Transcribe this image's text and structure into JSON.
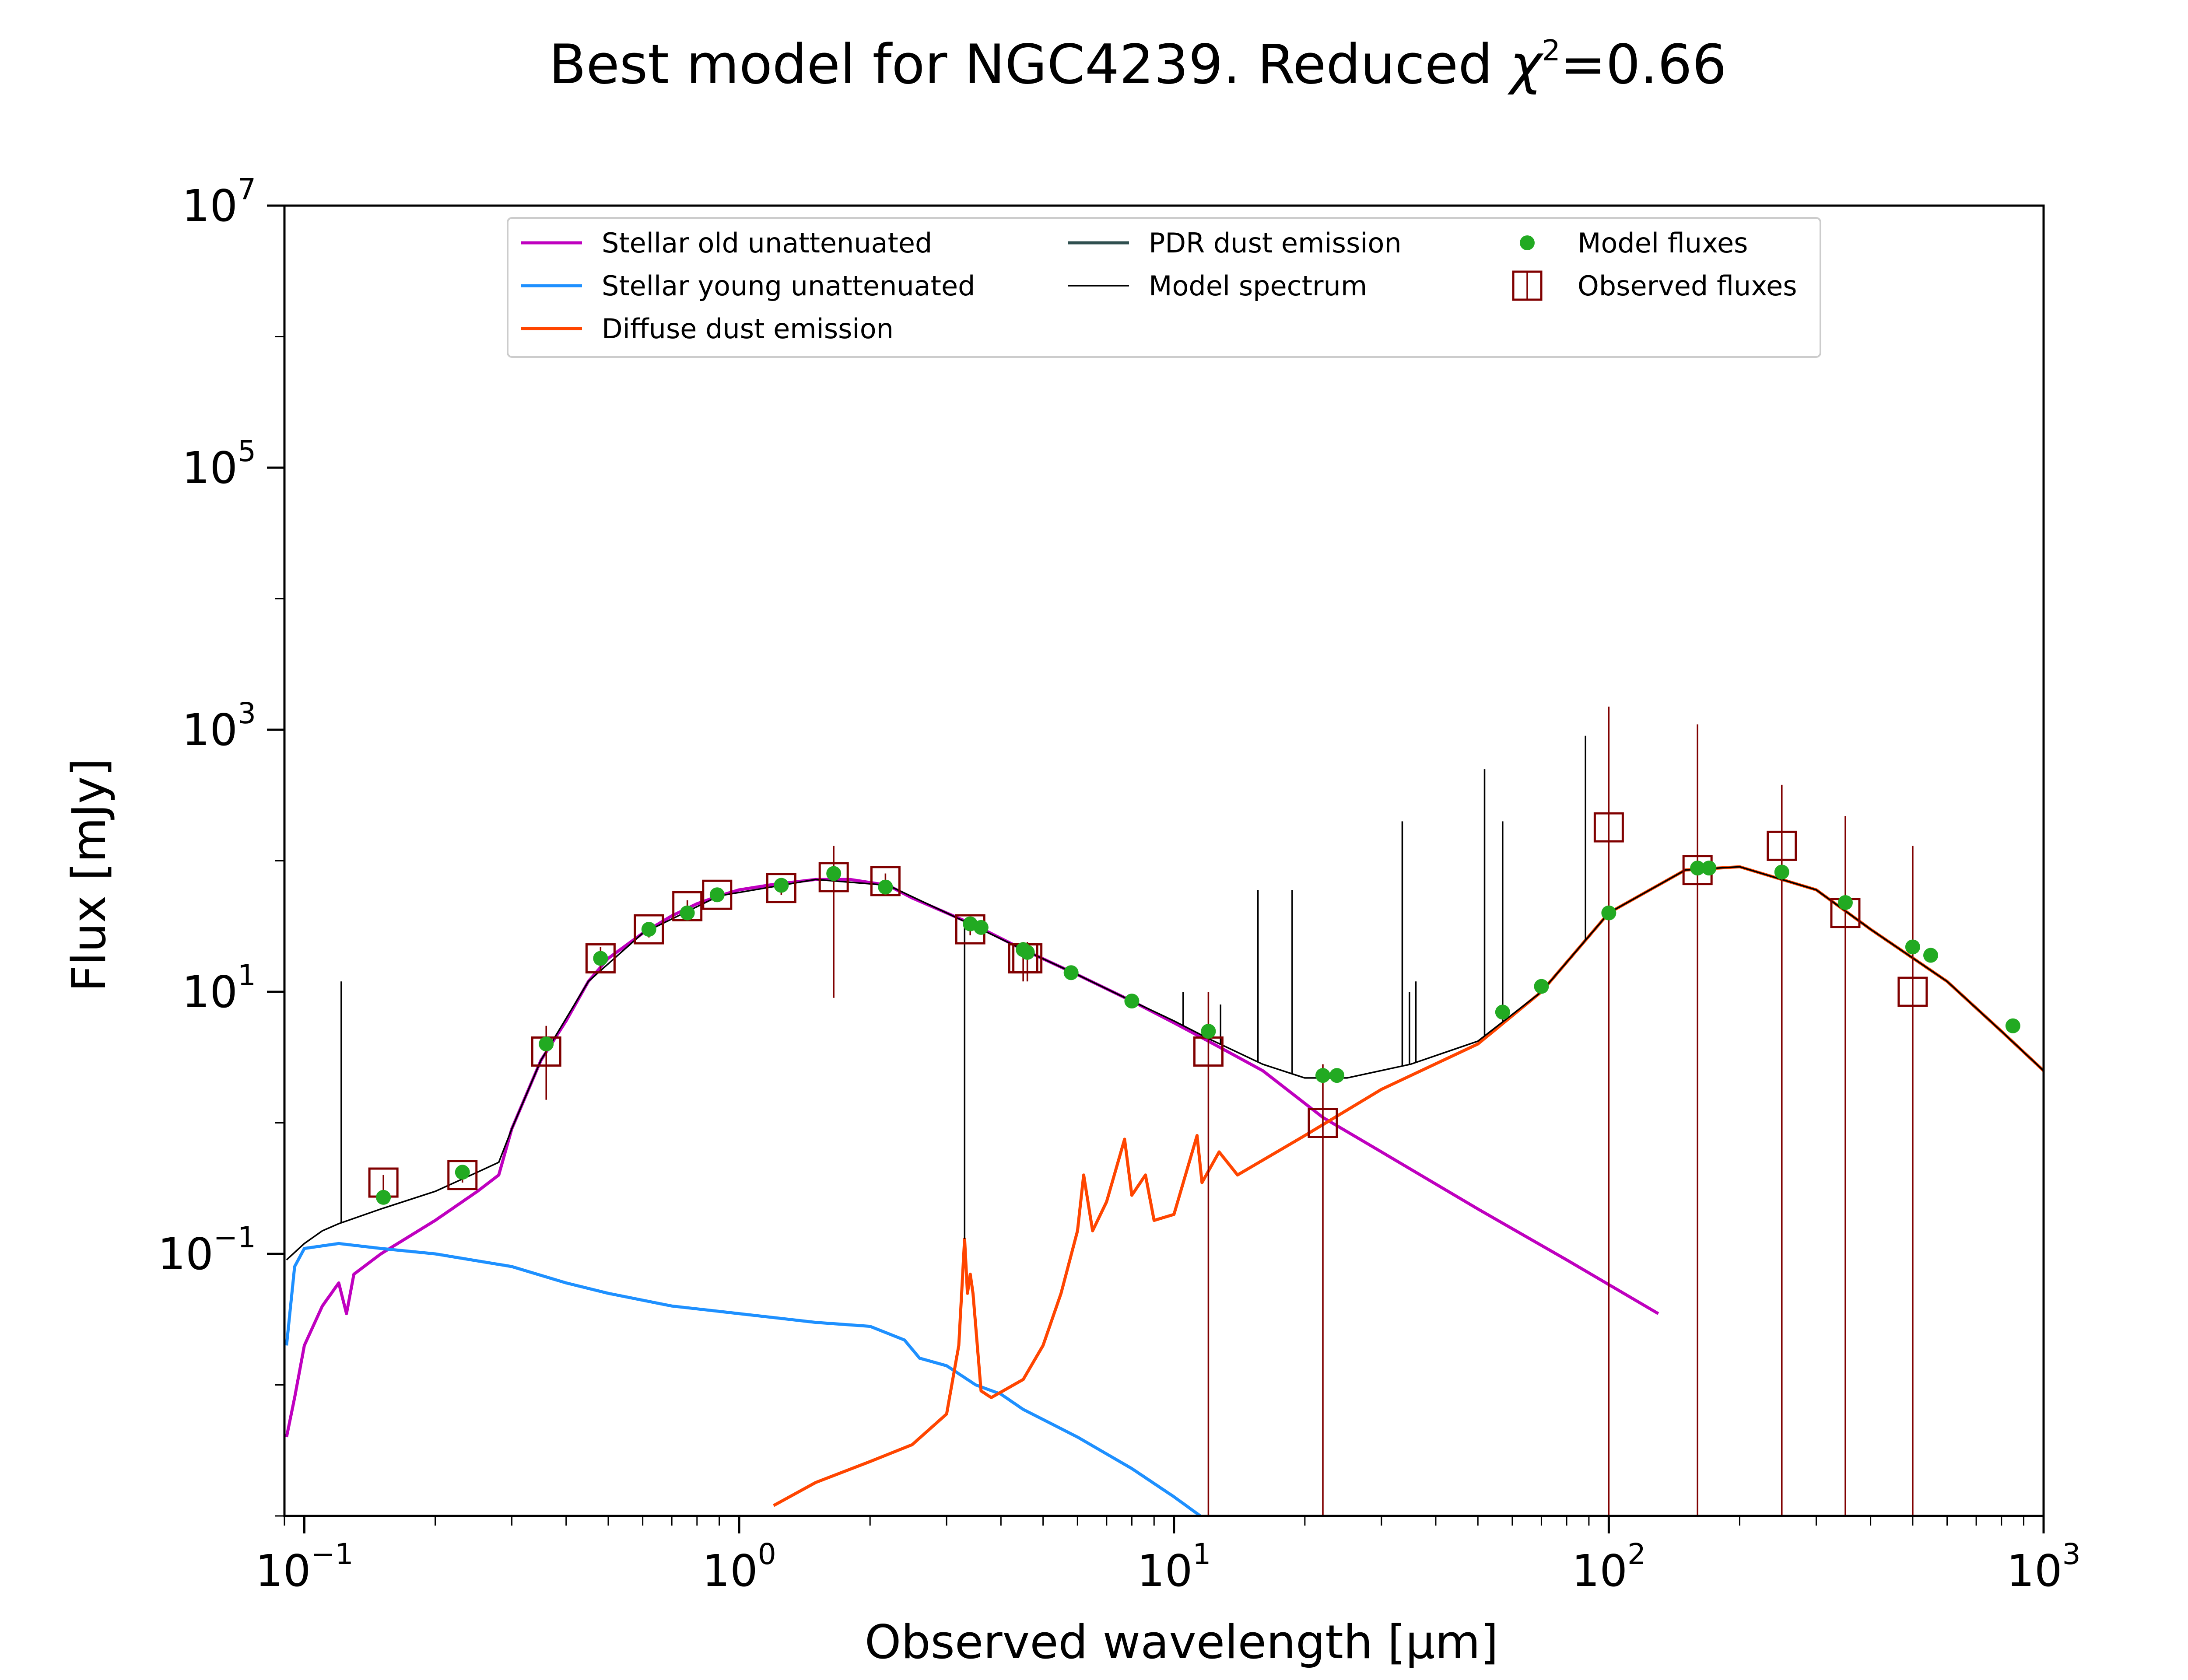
{
  "chart_data": {
    "type": "line",
    "title_main": "Best model for NGC4239. Reduced ",
    "title_chi": "χ",
    "title_chi_exp": "2",
    "title_value": "=0.66",
    "xlabel": "Observed wavelength [μm]",
    "ylabel": "Flux [mJy]",
    "x_scale": "log",
    "y_scale": "log",
    "xlim": [
      0.09,
      1000
    ],
    "ylim": [
      0.001,
      10000000
    ],
    "grid": false,
    "legend_placement": "upper-center",
    "x_ticks": [
      {
        "base": "10",
        "exp": "−1",
        "value": 0.1
      },
      {
        "base": "10",
        "exp": "0",
        "value": 1
      },
      {
        "base": "10",
        "exp": "1",
        "value": 10
      },
      {
        "base": "10",
        "exp": "2",
        "value": 100
      },
      {
        "base": "10",
        "exp": "3",
        "value": 1000
      }
    ],
    "y_ticks": [
      {
        "base": "10",
        "exp": "−1",
        "value": 0.1
      },
      {
        "base": "10",
        "exp": "1",
        "value": 10
      },
      {
        "base": "10",
        "exp": "3",
        "value": 1000
      },
      {
        "base": "10",
        "exp": "5",
        "value": 100000
      },
      {
        "base": "10",
        "exp": "7",
        "value": 10000000
      }
    ],
    "legend": {
      "stellar_old": "Stellar old unattenuated",
      "stellar_young": "Stellar young unattenuated",
      "diffuse_dust": "Diffuse dust emission",
      "pdr_dust": "PDR dust emission",
      "model_spectrum": "Model spectrum",
      "model_fluxes": "Model fluxes",
      "observed_fluxes": "Observed fluxes"
    },
    "colors": {
      "stellar_old": "#bf00bf",
      "stellar_young": "#1e90ff",
      "diffuse_dust": "#ff4500",
      "pdr_dust": "#2f4f4f",
      "model_spectrum": "#000000",
      "model_fluxes": "#22aa22",
      "observed_fluxes": "#800000"
    },
    "series": [
      {
        "key": "stellar_old",
        "points": [
          [
            0.091,
            0.004
          ],
          [
            0.095,
            0.008
          ],
          [
            0.1,
            0.02
          ],
          [
            0.11,
            0.04
          ],
          [
            0.12,
            0.06
          ],
          [
            0.125,
            0.035
          ],
          [
            0.13,
            0.07
          ],
          [
            0.15,
            0.1
          ],
          [
            0.2,
            0.18
          ],
          [
            0.25,
            0.3
          ],
          [
            0.28,
            0.4
          ],
          [
            0.3,
            0.9
          ],
          [
            0.35,
            3
          ],
          [
            0.4,
            6
          ],
          [
            0.45,
            12
          ],
          [
            0.5,
            18
          ],
          [
            0.6,
            28
          ],
          [
            0.7,
            38
          ],
          [
            0.8,
            47
          ],
          [
            0.9,
            54
          ],
          [
            1.0,
            60
          ],
          [
            1.2,
            66
          ],
          [
            1.5,
            72
          ],
          [
            1.8,
            72
          ],
          [
            2.2,
            65
          ],
          [
            2.5,
            52
          ],
          [
            3.0,
            40
          ],
          [
            3.5,
            32
          ],
          [
            4.5,
            21
          ],
          [
            6.0,
            13.5
          ],
          [
            8.0,
            8.5
          ],
          [
            10,
            5.8
          ],
          [
            12,
            4.2
          ],
          [
            16,
            2.5
          ],
          [
            22,
            1.1
          ],
          [
            30,
            0.6
          ],
          [
            50,
            0.22
          ],
          [
            80,
            0.09
          ],
          [
            130,
            0.035
          ]
        ]
      },
      {
        "key": "stellar_young",
        "points": [
          [
            0.091,
            0.02
          ],
          [
            0.095,
            0.08
          ],
          [
            0.1,
            0.11
          ],
          [
            0.12,
            0.12
          ],
          [
            0.15,
            0.11
          ],
          [
            0.2,
            0.1
          ],
          [
            0.3,
            0.08
          ],
          [
            0.4,
            0.06
          ],
          [
            0.5,
            0.05
          ],
          [
            0.7,
            0.04
          ],
          [
            1.0,
            0.035
          ],
          [
            1.5,
            0.03
          ],
          [
            2.0,
            0.028
          ],
          [
            2.4,
            0.022
          ],
          [
            2.6,
            0.016
          ],
          [
            3.0,
            0.014
          ],
          [
            3.5,
            0.01
          ],
          [
            4.0,
            0.0085
          ],
          [
            4.5,
            0.0065
          ],
          [
            6.0,
            0.004
          ],
          [
            8.0,
            0.0023
          ],
          [
            10,
            0.0014
          ],
          [
            11.5,
            0.001
          ]
        ]
      },
      {
        "key": "diffuse_dust",
        "points": [
          [
            1.2,
            0.0012
          ],
          [
            1.5,
            0.0018
          ],
          [
            2.0,
            0.0026
          ],
          [
            2.5,
            0.0035
          ],
          [
            3.0,
            0.006
          ],
          [
            3.2,
            0.02
          ],
          [
            3.3,
            0.13
          ],
          [
            3.35,
            0.05
          ],
          [
            3.4,
            0.07
          ],
          [
            3.45,
            0.05
          ],
          [
            3.6,
            0.009
          ],
          [
            3.8,
            0.008
          ],
          [
            4.5,
            0.011
          ],
          [
            5.0,
            0.02
          ],
          [
            5.5,
            0.05
          ],
          [
            6.0,
            0.15
          ],
          [
            6.2,
            0.4
          ],
          [
            6.5,
            0.15
          ],
          [
            7.0,
            0.25
          ],
          [
            7.7,
            0.75
          ],
          [
            8.0,
            0.28
          ],
          [
            8.6,
            0.4
          ],
          [
            9.0,
            0.18
          ],
          [
            10,
            0.2
          ],
          [
            11.3,
            0.8
          ],
          [
            11.6,
            0.35
          ],
          [
            12.7,
            0.6
          ],
          [
            14,
            0.4
          ],
          [
            20,
            0.8
          ],
          [
            30,
            1.8
          ],
          [
            50,
            4
          ],
          [
            70,
            10
          ],
          [
            100,
            40
          ],
          [
            150,
            85
          ],
          [
            200,
            90
          ],
          [
            300,
            60
          ],
          [
            400,
            30
          ],
          [
            600,
            12
          ],
          [
            800,
            5
          ],
          [
            1000,
            2.5
          ]
        ]
      },
      {
        "key": "model_spectrum",
        "points": [
          [
            0.091,
            0.09
          ],
          [
            0.1,
            0.12
          ],
          [
            0.11,
            0.15
          ],
          [
            0.12,
            0.17
          ],
          [
            0.15,
            0.22
          ],
          [
            0.2,
            0.3
          ],
          [
            0.25,
            0.42
          ],
          [
            0.28,
            0.5
          ],
          [
            0.3,
            0.9
          ],
          [
            0.35,
            3
          ],
          [
            0.45,
            12
          ],
          [
            0.6,
            28
          ],
          [
            0.9,
            54
          ],
          [
            1.5,
            72
          ],
          [
            2.2,
            65
          ],
          [
            3.0,
            40
          ],
          [
            4.5,
            21
          ],
          [
            6.0,
            13.5
          ],
          [
            8.0,
            8.5
          ],
          [
            10,
            6
          ],
          [
            12,
            4.4
          ],
          [
            16,
            2.8
          ],
          [
            20,
            2.2
          ],
          [
            25,
            2.2
          ],
          [
            35,
            2.8
          ],
          [
            50,
            4.2
          ],
          [
            70,
            10
          ],
          [
            100,
            40
          ],
          [
            150,
            85
          ],
          [
            200,
            90
          ],
          [
            300,
            60
          ],
          [
            400,
            30
          ],
          [
            600,
            12
          ],
          [
            800,
            5
          ],
          [
            1000,
            2.5
          ]
        ]
      }
    ],
    "emission_lines": [
      [
        0.1216,
        12
      ],
      [
        3.3,
        0.13
      ],
      [
        10.5,
        10
      ],
      [
        12.8,
        8
      ],
      [
        15.6,
        60
      ],
      [
        18.7,
        60
      ],
      [
        33.5,
        200
      ],
      [
        34.8,
        10
      ],
      [
        36.0,
        12
      ],
      [
        51.8,
        500
      ],
      [
        57.0,
        200
      ],
      [
        88.4,
        900
      ]
    ],
    "model_fluxes": [
      [
        0.152,
        0.27
      ],
      [
        0.231,
        0.42
      ],
      [
        0.36,
        4.0
      ],
      [
        0.48,
        18
      ],
      [
        0.62,
        30
      ],
      [
        0.76,
        40
      ],
      [
        0.89,
        55
      ],
      [
        1.25,
        65
      ],
      [
        1.65,
        80
      ],
      [
        2.17,
        63
      ],
      [
        3.4,
        33
      ],
      [
        3.6,
        31
      ],
      [
        4.5,
        21
      ],
      [
        4.6,
        20
      ],
      [
        5.8,
        14
      ],
      [
        8.0,
        8.5
      ],
      [
        12,
        5
      ],
      [
        22,
        2.3
      ],
      [
        23.7,
        2.3
      ],
      [
        57,
        7
      ],
      [
        70,
        11
      ],
      [
        100,
        40
      ],
      [
        160,
        88
      ],
      [
        170,
        88
      ],
      [
        250,
        82
      ],
      [
        350,
        48
      ],
      [
        500,
        22
      ],
      [
        550,
        19
      ],
      [
        850,
        5.5
      ]
    ],
    "observed_fluxes": [
      {
        "x": 0.152,
        "y": 0.35,
        "lo": 0.3,
        "hi": 0.4
      },
      {
        "x": 0.231,
        "y": 0.4,
        "lo": 0.35,
        "hi": 0.45
      },
      {
        "x": 0.36,
        "y": 3.5,
        "lo": 1.5,
        "hi": 5.5
      },
      {
        "x": 0.48,
        "y": 18,
        "lo": 14,
        "hi": 22
      },
      {
        "x": 0.62,
        "y": 30,
        "lo": 26,
        "hi": 34
      },
      {
        "x": 0.76,
        "y": 45,
        "lo": 40,
        "hi": 50
      },
      {
        "x": 0.89,
        "y": 55,
        "lo": 50,
        "hi": 60
      },
      {
        "x": 1.25,
        "y": 62,
        "lo": 55,
        "hi": 70
      },
      {
        "x": 1.65,
        "y": 75,
        "lo": 9,
        "hi": 130
      },
      {
        "x": 2.17,
        "y": 70,
        "lo": 60,
        "hi": 80
      },
      {
        "x": 3.4,
        "y": 30,
        "lo": 27,
        "hi": 33
      },
      {
        "x": 4.5,
        "y": 18,
        "lo": 12,
        "hi": 24
      },
      {
        "x": 4.6,
        "y": 18,
        "lo": 12,
        "hi": 24
      },
      {
        "x": 12,
        "y": 3.5,
        "lo": 0.001,
        "hi": 10
      },
      {
        "x": 22,
        "y": 1.0,
        "lo": 0.001,
        "hi": 2.8
      },
      {
        "x": 100,
        "y": 180,
        "lo": 0.001,
        "hi": 1500
      },
      {
        "x": 160,
        "y": 85,
        "lo": 0.001,
        "hi": 1100
      },
      {
        "x": 250,
        "y": 130,
        "lo": 0.001,
        "hi": 380
      },
      {
        "x": 350,
        "y": 40,
        "lo": 0.001,
        "hi": 220
      },
      {
        "x": 500,
        "y": 10,
        "lo": 0.001,
        "hi": 130
      }
    ]
  }
}
